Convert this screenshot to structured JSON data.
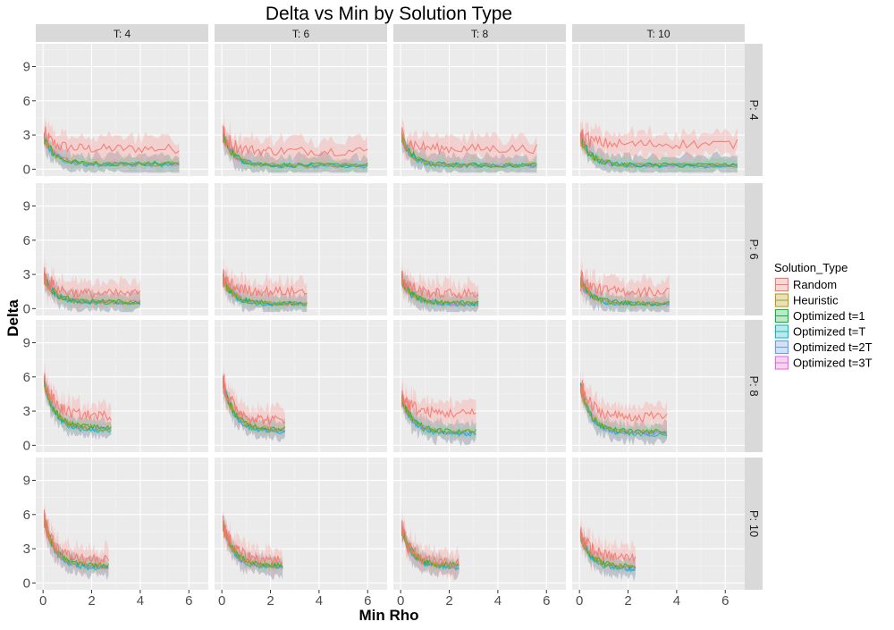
{
  "chart_data": {
    "type": "line",
    "title": "Delta vs Min by Solution Type",
    "xlabel": "Min Rho",
    "ylabel": "Delta",
    "xlim": [
      -0.3,
      6.8
    ],
    "ylim": [
      -0.6,
      11
    ],
    "x_ticks": [
      0,
      2,
      4,
      6
    ],
    "y_ticks": [
      0,
      3,
      6,
      9
    ],
    "facet_cols": [
      "T: 4",
      "T: 6",
      "T: 8",
      "T: 10"
    ],
    "facet_rows": [
      "P: 4",
      "P: 6",
      "P: 8",
      "P: 10"
    ],
    "legend": {
      "title": "Solution_Type",
      "position": "right",
      "entries": [
        {
          "name": "Random",
          "color": "#F8766D"
        },
        {
          "name": "Heuristic",
          "color": "#B79F00"
        },
        {
          "name": "Optimized t=1",
          "color": "#00BA38"
        },
        {
          "name": "Optimized t=T",
          "color": "#00BFC4"
        },
        {
          "name": "Optimized t=2T",
          "color": "#619CFF"
        },
        {
          "name": "Optimized t=3T",
          "color": "#F564E3"
        }
      ]
    },
    "grid": true,
    "panels": [
      {
        "row": "P: 4",
        "col": "T: 4",
        "xmax": 5.6,
        "peak": 3.0,
        "random_tail": 1.8,
        "opt_tail": 0.4
      },
      {
        "row": "P: 4",
        "col": "T: 6",
        "xmax": 6.0,
        "peak": 3.2,
        "random_tail": 1.6,
        "opt_tail": 0.3
      },
      {
        "row": "P: 4",
        "col": "T: 8",
        "xmax": 5.6,
        "peak": 3.0,
        "random_tail": 1.8,
        "opt_tail": 0.3
      },
      {
        "row": "P: 4",
        "col": "T: 10",
        "xmax": 6.5,
        "peak": 3.0,
        "random_tail": 2.2,
        "opt_tail": 0.3
      },
      {
        "row": "P: 6",
        "col": "T: 4",
        "xmax": 4.0,
        "peak": 3.0,
        "random_tail": 1.3,
        "opt_tail": 0.5
      },
      {
        "row": "P: 6",
        "col": "T: 6",
        "xmax": 3.5,
        "peak": 2.8,
        "random_tail": 1.5,
        "opt_tail": 0.4
      },
      {
        "row": "P: 6",
        "col": "T: 8",
        "xmax": 3.2,
        "peak": 2.8,
        "random_tail": 1.3,
        "opt_tail": 0.4
      },
      {
        "row": "P: 6",
        "col": "T: 10",
        "xmax": 3.7,
        "peak": 2.6,
        "random_tail": 1.5,
        "opt_tail": 0.4
      },
      {
        "row": "P: 8",
        "col": "T: 4",
        "xmax": 2.8,
        "peak": 6.0,
        "random_tail": 2.6,
        "opt_tail": 1.3
      },
      {
        "row": "P: 8",
        "col": "T: 6",
        "xmax": 2.6,
        "peak": 6.0,
        "random_tail": 2.2,
        "opt_tail": 1.2
      },
      {
        "row": "P: 8",
        "col": "T: 8",
        "xmax": 3.1,
        "peak": 4.5,
        "random_tail": 2.8,
        "opt_tail": 1.0
      },
      {
        "row": "P: 8",
        "col": "T: 10",
        "xmax": 3.6,
        "peak": 5.5,
        "random_tail": 2.5,
        "opt_tail": 1.0
      },
      {
        "row": "P: 10",
        "col": "T: 4",
        "xmax": 2.7,
        "peak": 6.0,
        "random_tail": 2.0,
        "opt_tail": 1.3
      },
      {
        "row": "P: 10",
        "col": "T: 6",
        "xmax": 2.5,
        "peak": 5.5,
        "random_tail": 2.0,
        "opt_tail": 1.3
      },
      {
        "row": "P: 10",
        "col": "T: 8",
        "xmax": 2.4,
        "peak": 5.0,
        "random_tail": 1.7,
        "opt_tail": 1.3
      },
      {
        "row": "P: 10",
        "col": "T: 10",
        "xmax": 2.3,
        "peak": 4.5,
        "random_tail": 2.2,
        "opt_tail": 1.2
      }
    ]
  }
}
